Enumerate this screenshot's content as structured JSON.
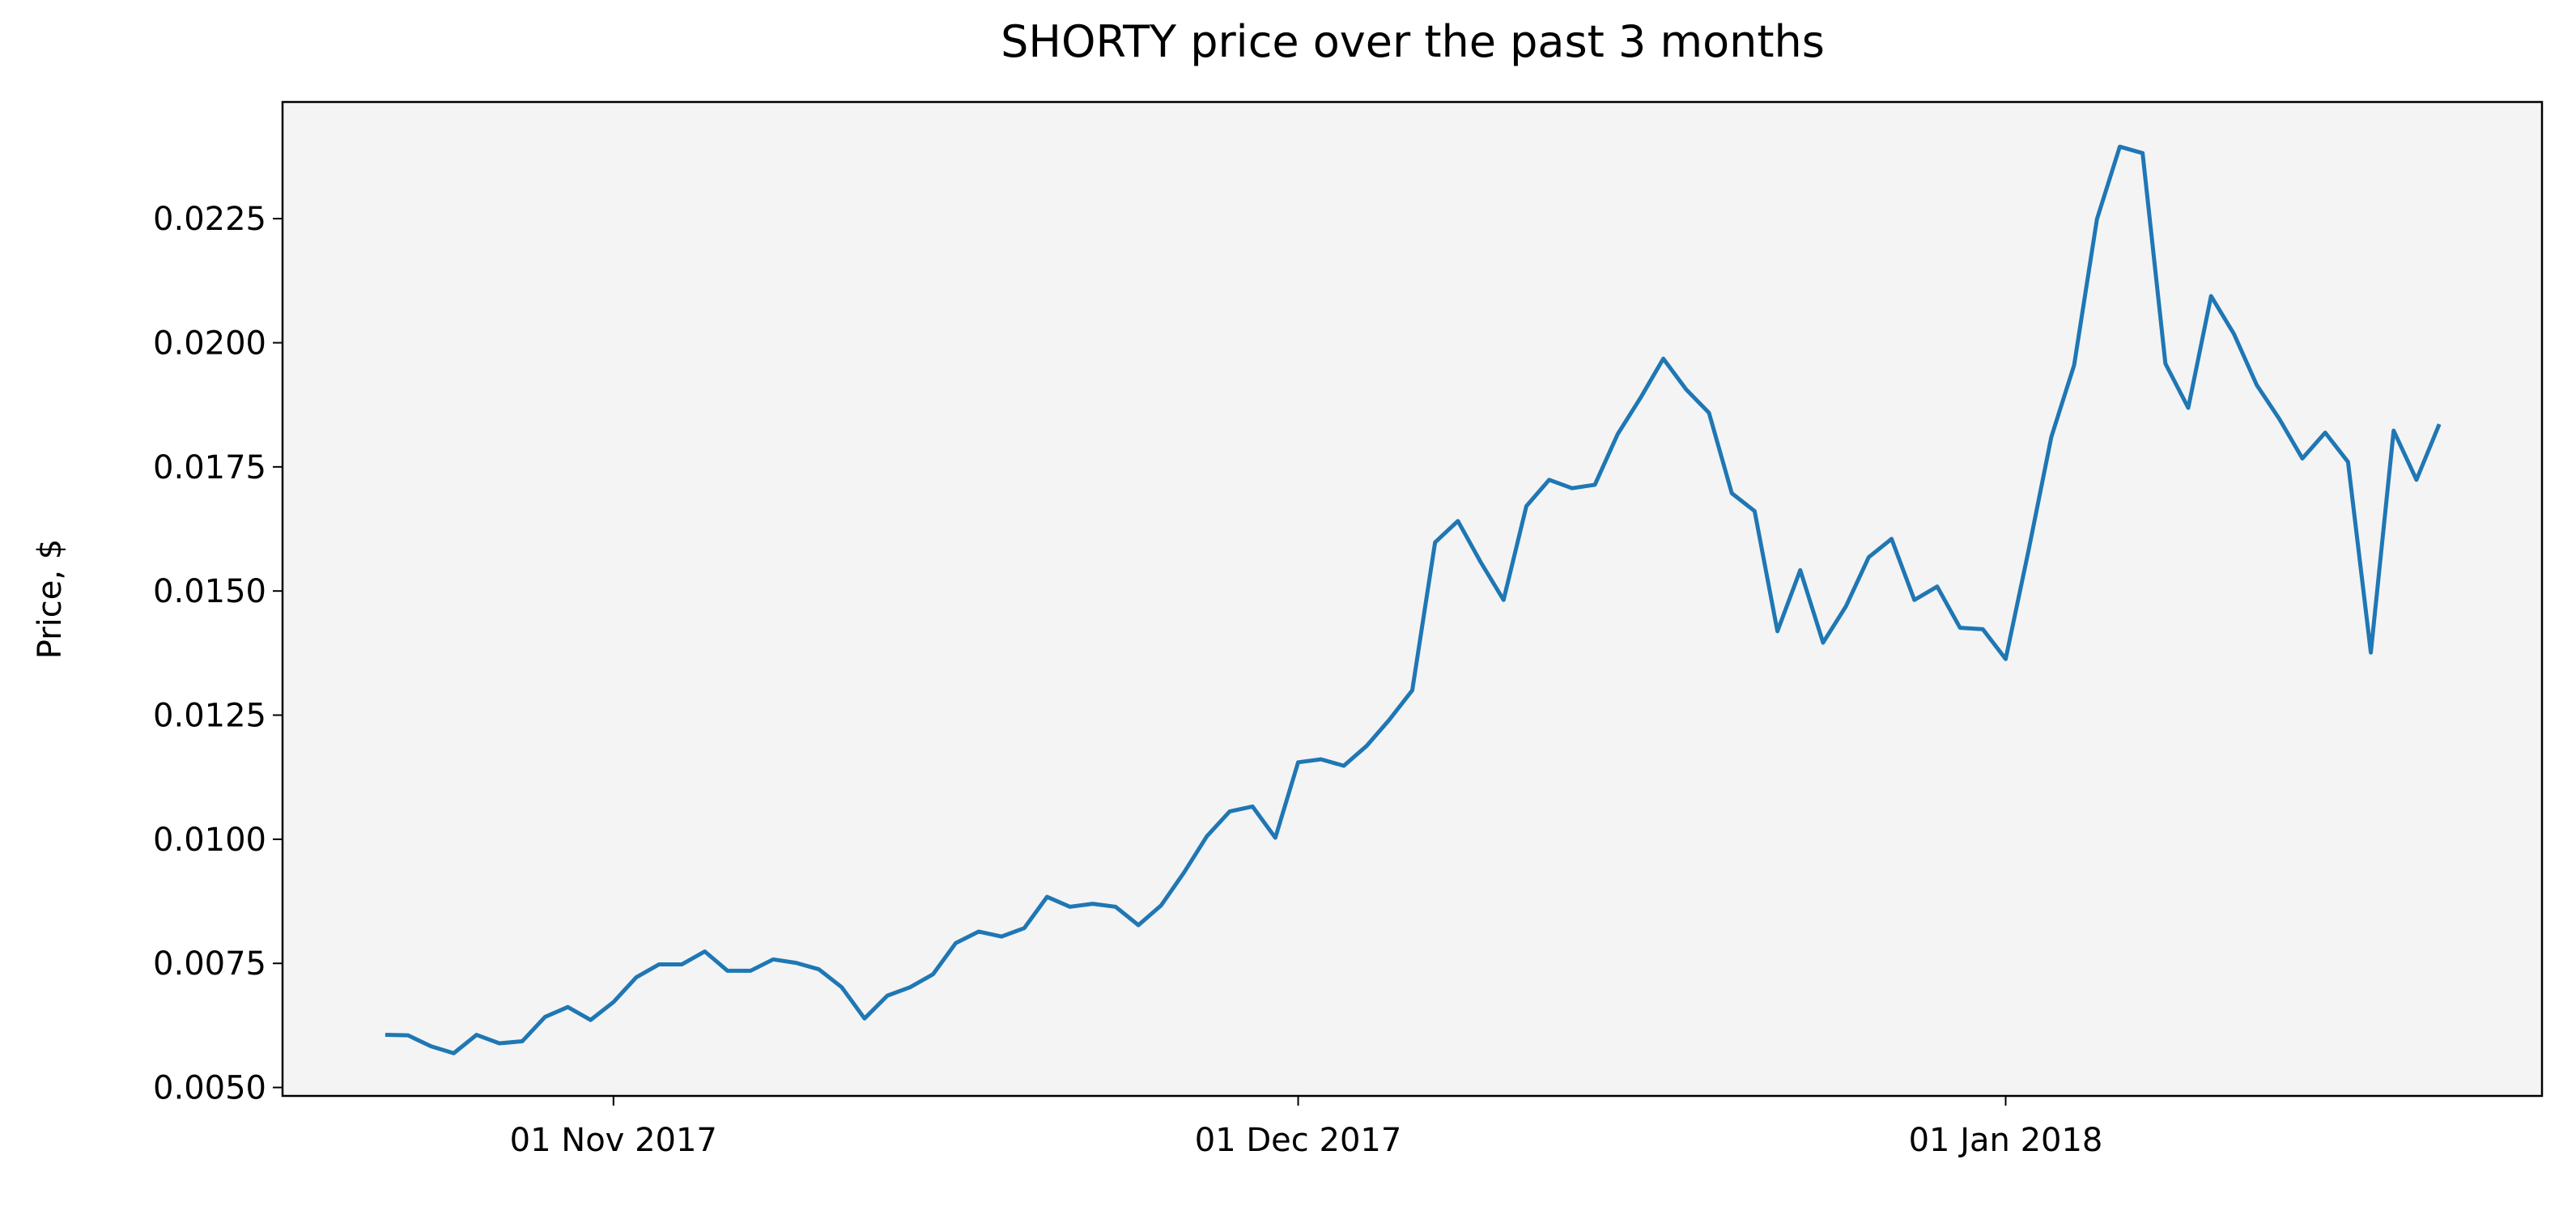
{
  "chart_data": {
    "type": "line",
    "title": "SHORTY price over the past 3 months",
    "ylabel": "Price, $",
    "x": [
      "2017-10-22",
      "2017-10-23",
      "2017-10-24",
      "2017-10-25",
      "2017-10-26",
      "2017-10-27",
      "2017-10-28",
      "2017-10-29",
      "2017-10-30",
      "2017-10-31",
      "2017-11-01",
      "2017-11-02",
      "2017-11-03",
      "2017-11-04",
      "2017-11-05",
      "2017-11-06",
      "2017-11-07",
      "2017-11-08",
      "2017-11-09",
      "2017-11-10",
      "2017-11-11",
      "2017-11-12",
      "2017-11-13",
      "2017-11-14",
      "2017-11-15",
      "2017-11-16",
      "2017-11-17",
      "2017-11-18",
      "2017-11-19",
      "2017-11-20",
      "2017-11-21",
      "2017-11-22",
      "2017-11-23",
      "2017-11-24",
      "2017-11-25",
      "2017-11-26",
      "2017-11-27",
      "2017-11-28",
      "2017-11-29",
      "2017-11-30",
      "2017-12-01",
      "2017-12-02",
      "2017-12-03",
      "2017-12-04",
      "2017-12-05",
      "2017-12-06",
      "2017-12-07",
      "2017-12-08",
      "2017-12-09",
      "2017-12-10",
      "2017-12-11",
      "2017-12-12",
      "2017-12-13",
      "2017-12-14",
      "2017-12-15",
      "2017-12-16",
      "2017-12-17",
      "2017-12-18",
      "2017-12-19",
      "2017-12-20",
      "2017-12-21",
      "2017-12-22",
      "2017-12-23",
      "2017-12-24",
      "2017-12-25",
      "2017-12-26",
      "2017-12-27",
      "2017-12-28",
      "2017-12-29",
      "2017-12-30",
      "2017-12-31",
      "2018-01-01",
      "2018-01-02",
      "2018-01-03",
      "2018-01-04",
      "2018-01-05",
      "2018-01-06",
      "2018-01-07",
      "2018-01-08",
      "2018-01-09",
      "2018-01-10",
      "2018-01-11",
      "2018-01-12",
      "2018-01-13",
      "2018-01-14",
      "2018-01-15",
      "2018-01-16",
      "2018-01-17",
      "2018-01-18",
      "2018-01-19",
      "2018-01-20"
    ],
    "series": [
      {
        "name": "SHORTY",
        "color": "#1f77b4",
        "values": [
          0.00606,
          0.00605,
          0.00583,
          0.00569,
          0.00606,
          0.00589,
          0.00593,
          0.00642,
          0.00662,
          0.00636,
          0.00672,
          0.00722,
          0.00748,
          0.00748,
          0.00774,
          0.00735,
          0.00735,
          0.00758,
          0.00751,
          0.00738,
          0.00702,
          0.00639,
          0.00685,
          0.00702,
          0.00728,
          0.00791,
          0.00814,
          0.00804,
          0.00821,
          0.00884,
          0.00864,
          0.0087,
          0.00864,
          0.00827,
          0.00867,
          0.00933,
          0.01006,
          0.01056,
          0.01066,
          0.01003,
          0.01155,
          0.01161,
          0.01148,
          0.01188,
          0.01241,
          0.013,
          0.01598,
          0.01641,
          0.01558,
          0.01482,
          0.01671,
          0.01724,
          0.01707,
          0.01714,
          0.01816,
          0.01889,
          0.01968,
          0.01906,
          0.01859,
          0.01697,
          0.01661,
          0.01419,
          0.01542,
          0.01396,
          0.01469,
          0.01568,
          0.01605,
          0.01482,
          0.01509,
          0.01426,
          0.01423,
          0.01363,
          0.01581,
          0.0181,
          0.01955,
          0.02249,
          0.02395,
          0.02382,
          0.01958,
          0.01869,
          0.02094,
          0.02018,
          0.01915,
          0.01846,
          0.01767,
          0.01819,
          0.0176,
          0.01376,
          0.01823,
          0.01724,
          0.01836
        ]
      }
    ],
    "xlim": [
      "2017-10-17T12:00:00Z",
      "2018-01-24T12:00:00Z"
    ],
    "xticks": [
      {
        "value": "2017-11-01",
        "label": "01 Nov 2017"
      },
      {
        "value": "2017-12-01",
        "label": "01 Dec 2017"
      },
      {
        "value": "2018-01-01",
        "label": "01 Jan 2018"
      }
    ],
    "ylim": [
      0.00483,
      0.02485
    ],
    "yticks": [
      {
        "value": 0.005,
        "label": "0.0050"
      },
      0.0075,
      {
        "value": 0.01,
        "label": "0.0100"
      },
      0.0125,
      {
        "value": 0.015,
        "label": "0.0150"
      },
      0.0175,
      {
        "value": 0.02,
        "label": "0.0200"
      },
      0.0225
    ],
    "grid": false,
    "background": "#f4f4f4"
  }
}
